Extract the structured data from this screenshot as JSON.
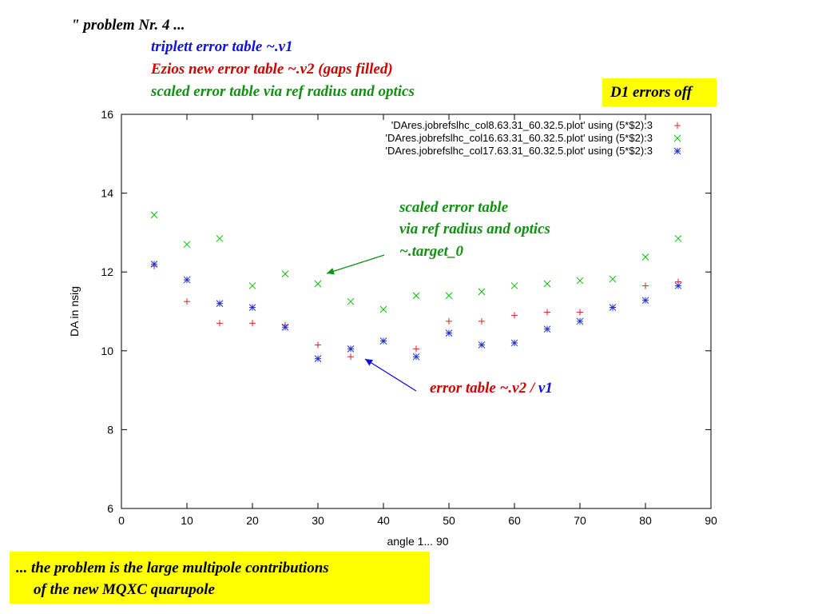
{
  "header": {
    "line1": "\" problem Nr. 4  ...",
    "line2": "triplett error table  ~.v1",
    "line3": "Ezios new error table  ~.v2  (gaps filled)",
    "line4": "scaled error table via ref radius and optics"
  },
  "badge": {
    "label": "D1 errors off"
  },
  "annotations": {
    "green_line1": "scaled error table",
    "green_line2": "via ref radius and optics",
    "green_line3": "~.target_0",
    "red_text": "error table  ~.v2 / ",
    "blue_text": "v1"
  },
  "footer": {
    "line1": "... the problem is the large multipole contributions",
    "line2": "of the new MQXC quarupole"
  },
  "colors": {
    "red": "#e02020",
    "green": "#00c000",
    "blue": "#2030d0",
    "yellow": "#ffff00",
    "green_text": "#109010",
    "red_text": "#d00000",
    "blue_text": "#1010e0"
  },
  "chart_data": {
    "type": "scatter",
    "xlabel": "angle 1... 90",
    "ylabel": "DA in nsig",
    "xlim": [
      0,
      90
    ],
    "ylim": [
      6,
      16
    ],
    "xticks": [
      0,
      10,
      20,
      30,
      40,
      50,
      60,
      70,
      80,
      90
    ],
    "yticks": [
      6,
      8,
      10,
      12,
      14,
      16
    ],
    "legend_position": "top-right",
    "series": [
      {
        "name": "'DAres.jobrefslhc_col8.63.31_60.32.5.plot' using (5*$2):3",
        "marker": "+",
        "color": "#e02020",
        "points": [
          [
            5,
            12.15
          ],
          [
            10,
            11.25
          ],
          [
            15,
            10.7
          ],
          [
            20,
            10.7
          ],
          [
            25,
            10.65
          ],
          [
            30,
            10.15
          ],
          [
            35,
            9.85
          ],
          [
            40,
            10.25
          ],
          [
            45,
            10.05
          ],
          [
            50,
            10.75
          ],
          [
            55,
            10.75
          ],
          [
            60,
            10.9
          ],
          [
            65,
            10.98
          ],
          [
            70,
            10.98
          ],
          [
            75,
            11.1
          ],
          [
            80,
            11.65
          ],
          [
            85,
            11.75
          ]
        ]
      },
      {
        "name": "'DAres.jobrefslhc_col16.63.31_60.32.5.plot' using (5*$2):3",
        "marker": "x",
        "color": "#00c000",
        "points": [
          [
            5,
            13.45
          ],
          [
            10,
            12.7
          ],
          [
            15,
            12.85
          ],
          [
            20,
            11.65
          ],
          [
            25,
            11.95
          ],
          [
            30,
            11.7
          ],
          [
            35,
            11.25
          ],
          [
            40,
            11.05
          ],
          [
            45,
            11.4
          ],
          [
            50,
            11.4
          ],
          [
            55,
            11.5
          ],
          [
            60,
            11.65
          ],
          [
            65,
            11.7
          ],
          [
            70,
            11.78
          ],
          [
            75,
            11.82
          ],
          [
            80,
            12.38
          ],
          [
            85,
            12.85
          ]
        ]
      },
      {
        "name": "'DAres.jobrefslhc_col17.63.31_60.32.5.plot' using (5*$2):3",
        "marker": "*",
        "color": "#2030d0",
        "points": [
          [
            5,
            12.2
          ],
          [
            10,
            11.8
          ],
          [
            15,
            11.2
          ],
          [
            20,
            11.1
          ],
          [
            25,
            10.6
          ],
          [
            30,
            9.8
          ],
          [
            35,
            10.05
          ],
          [
            40,
            10.25
          ],
          [
            45,
            9.85
          ],
          [
            50,
            10.45
          ],
          [
            55,
            10.15
          ],
          [
            60,
            10.2
          ],
          [
            65,
            10.55
          ],
          [
            70,
            10.75
          ],
          [
            75,
            11.1
          ],
          [
            80,
            11.28
          ],
          [
            85,
            11.65
          ]
        ]
      }
    ]
  }
}
